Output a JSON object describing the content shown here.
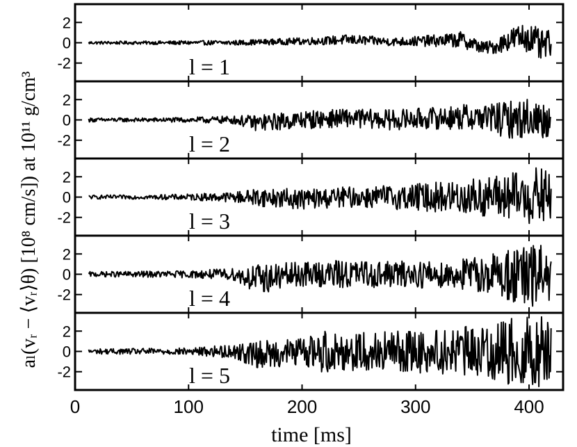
{
  "chart_data": {
    "type": "line",
    "xlabel": "time [ms]",
    "ylabel": "a_l(v_r − ⟨v_r⟩_θ) [10^8 cm/s]) at 10^11 g/cm^3",
    "ylabel_display": "aₗ(vᵣ − ⟨vᵣ⟩θ) [10⁸ cm/s]) at 10¹¹ g/cm³",
    "xlim": [
      0,
      430
    ],
    "ylim": [
      -3.8,
      3.8
    ],
    "xticks": [
      0,
      100,
      200,
      300,
      400
    ],
    "yticks": [
      2,
      0,
      -2
    ],
    "grid": false,
    "t_start": 12,
    "t_end": 420,
    "panels": [
      {
        "label": "l = 1",
        "series": [
          {
            "t": [
              12,
              50,
              100,
              140,
              180,
              220,
              240,
              280,
              320,
              340,
              360,
              370,
              380,
              390,
              400,
              410,
              420
            ],
            "envelope": [
              0.15,
              0.15,
              0.2,
              0.25,
              0.3,
              0.4,
              0.5,
              0.4,
              0.6,
              0.8,
              0.6,
              0.7,
              1.0,
              1.3,
              1.5,
              1.6,
              1.2
            ],
            "trend": [
              0,
              0,
              0,
              0,
              0.1,
              0.2,
              0.3,
              0.1,
              0.2,
              0.3,
              -0.5,
              -0.4,
              0.2,
              0.5,
              0.6,
              -0.4,
              0
            ]
          }
        ]
      },
      {
        "label": "l = 2",
        "series": [
          {
            "t": [
              12,
              60,
              100,
              140,
              160,
              200,
              240,
              280,
              320,
              360,
              380,
              400,
              410,
              420
            ],
            "envelope": [
              0.2,
              0.2,
              0.25,
              0.4,
              0.8,
              0.9,
              0.9,
              1.0,
              1.1,
              1.4,
              1.8,
              2.0,
              2.0,
              1.6
            ],
            "trend": [
              0,
              0,
              0,
              0,
              -0.3,
              0,
              0.2,
              0,
              0.2,
              0.3,
              0,
              0.2,
              0,
              0
            ]
          }
        ]
      },
      {
        "label": "l = 3",
        "series": [
          {
            "t": [
              12,
              60,
              100,
              140,
              160,
              200,
              240,
              280,
              320,
              360,
              380,
              400,
              410,
              420
            ],
            "envelope": [
              0.2,
              0.2,
              0.3,
              0.5,
              0.9,
              1.0,
              1.0,
              1.2,
              1.5,
              2.0,
              2.4,
              2.7,
              3.0,
              2.6
            ],
            "trend": [
              0,
              0,
              0,
              0,
              0,
              -0.2,
              0,
              0,
              0,
              0,
              0,
              0,
              0,
              0
            ]
          }
        ]
      },
      {
        "label": "l = 4",
        "series": [
          {
            "t": [
              12,
              60,
              100,
              140,
              160,
              200,
              240,
              280,
              320,
              360,
              380,
              400,
              410,
              420
            ],
            "envelope": [
              0.25,
              0.3,
              0.35,
              0.6,
              1.5,
              1.2,
              1.4,
              1.3,
              1.4,
              1.8,
              2.6,
              3.4,
              3.2,
              2.4
            ],
            "trend": [
              0,
              0,
              0,
              0,
              -0.5,
              0,
              0,
              0,
              0,
              0,
              0,
              -0.5,
              0,
              0
            ]
          }
        ]
      },
      {
        "label": "l = 5",
        "series": [
          {
            "t": [
              12,
              60,
              100,
              140,
              160,
              200,
              220,
              240,
              280,
              320,
              360,
              380,
              400,
              410,
              420
            ],
            "envelope": [
              0.25,
              0.3,
              0.35,
              0.7,
              1.3,
              1.4,
              2.2,
              1.9,
              2.0,
              2.2,
              2.6,
              3.2,
              3.5,
              3.5,
              3.2
            ],
            "trend": [
              0,
              0,
              0,
              0,
              -0.3,
              0,
              0,
              0,
              0,
              0,
              0,
              0,
              0,
              0,
              0
            ]
          }
        ]
      }
    ]
  }
}
